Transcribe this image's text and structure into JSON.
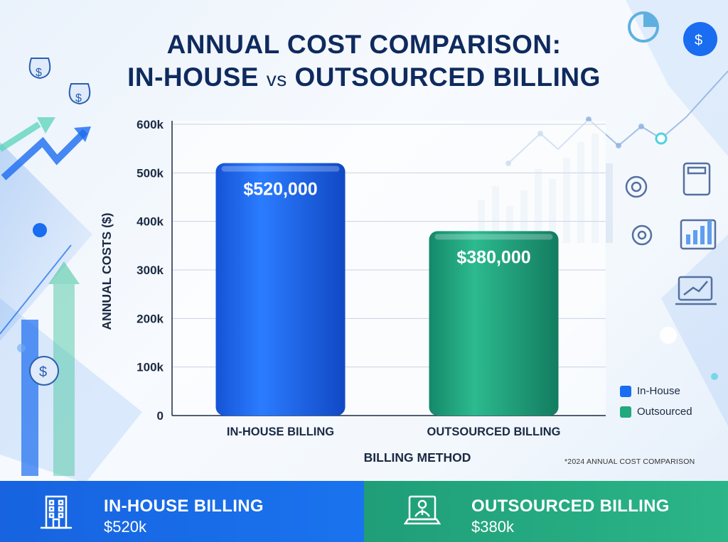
{
  "title": {
    "line1": "ANNUAL COST COMPARISON:",
    "line2_left": "IN-HOUSE",
    "line2_vs": "vs",
    "line2_right": "OUTSOURCED BILLING"
  },
  "chart_data": {
    "type": "bar",
    "categories": [
      "IN-HOUSE BILLING",
      "OUTSOURCED BILLING"
    ],
    "values": [
      520000,
      380000
    ],
    "data_labels": [
      "$520,000",
      "$380,000"
    ],
    "ylabel": "ANNUAL COSTS ($)",
    "xlabel": "BILLING METHOD",
    "ylim": [
      0,
      600000
    ],
    "yticks": [
      {
        "value": 0,
        "label": "0"
      },
      {
        "value": 100000,
        "label": "100k"
      },
      {
        "value": 200000,
        "label": "200k"
      },
      {
        "value": 300000,
        "label": "300k"
      },
      {
        "value": 400000,
        "label": "400k"
      },
      {
        "value": 500000,
        "label": "500k"
      },
      {
        "value": 600000,
        "label": "600k"
      }
    ],
    "colors": [
      "#1a6cf0",
      "#22a87f"
    ],
    "grid": true,
    "legend_position": "bottom-right"
  },
  "legend": [
    {
      "label": "In-House",
      "color": "#1a6cf0"
    },
    {
      "label": "Outsourced",
      "color": "#22a87f"
    }
  ],
  "footnote": "*2024 ANNUAL COST COMPARISON",
  "footer": {
    "left": {
      "name": "IN-HOUSE BILLING",
      "value": "$520k",
      "icon": "office-building-icon"
    },
    "right": {
      "name": "OUTSOURCED BILLING",
      "value": "$380k",
      "icon": "laptop-person-icon"
    }
  }
}
